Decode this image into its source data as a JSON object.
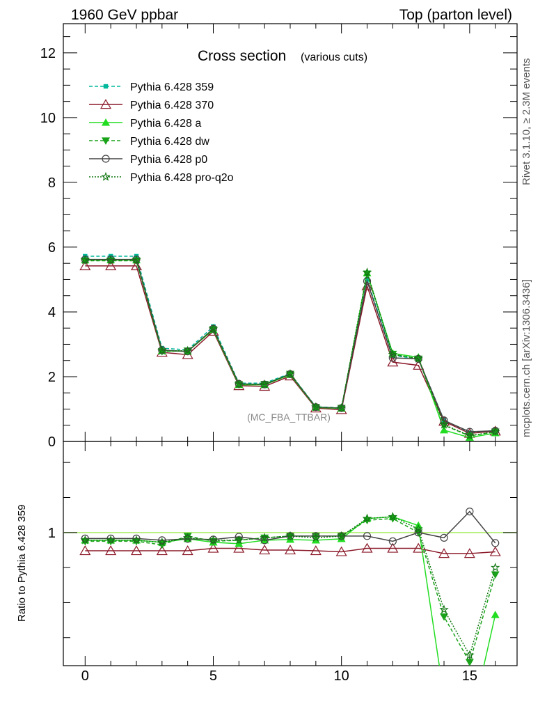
{
  "header": {
    "left": "1960 GeV ppbar",
    "right": "Top (parton level)"
  },
  "side_labels": {
    "rivet": "Rivet 3.1.10, ≥ 2.3M events",
    "mcplots": "mcplots.cern.ch [arXiv:1306.3436]"
  },
  "chart_data": [
    {
      "type": "line",
      "title": "Cross section",
      "subtitle": "(various cuts)",
      "watermark": "(MC_FBA_TTBAR)",
      "xlabel": "",
      "ylabel": "",
      "xlim": [
        -0.85,
        16.85
      ],
      "ylim": [
        0,
        12.9
      ],
      "x_ticks": [
        0,
        5,
        10,
        15
      ],
      "y_ticks": [
        0,
        2,
        4,
        6,
        8,
        10,
        12
      ],
      "legend_position": "top-left",
      "grid": false,
      "x": [
        0,
        1,
        2,
        3,
        4,
        5,
        6,
        7,
        8,
        9,
        10,
        11,
        12,
        13,
        14,
        15,
        16
      ],
      "series": [
        {
          "name": "Pythia 6.428 359",
          "color": "#00b89c",
          "dash": "5,3",
          "marker": "square",
          "values": [
            5.72,
            5.72,
            5.72,
            2.88,
            2.83,
            3.55,
            1.8,
            1.8,
            2.1,
            1.07,
            1.04,
            5.0,
            2.65,
            2.55,
            0.66,
            0.27,
            0.34
          ]
        },
        {
          "name": "Pythia 6.428 370",
          "color": "#8b1a2a",
          "dash": "",
          "marker": "triangle-open",
          "values": [
            5.42,
            5.42,
            5.42,
            2.75,
            2.68,
            3.4,
            1.72,
            1.7,
            2.02,
            1.03,
            0.98,
            4.8,
            2.45,
            2.35,
            0.62,
            0.25,
            0.32
          ]
        },
        {
          "name": "Pythia 6.428 a",
          "color": "#22dd22",
          "dash": "",
          "marker": "triangle",
          "values": [
            5.6,
            5.6,
            5.6,
            2.8,
            2.78,
            3.45,
            1.75,
            1.75,
            2.06,
            1.05,
            1.02,
            5.2,
            2.72,
            2.6,
            0.35,
            0.12,
            0.26
          ]
        },
        {
          "name": "Pythia 6.428 dw",
          "color": "#1aa31a",
          "dash": "5,3",
          "marker": "triangle-down",
          "values": [
            5.58,
            5.58,
            5.58,
            2.78,
            2.8,
            3.46,
            1.76,
            1.77,
            2.08,
            1.06,
            1.03,
            5.18,
            2.7,
            2.55,
            0.5,
            0.17,
            0.3
          ]
        },
        {
          "name": "Pythia 6.428 p0",
          "color": "#444444",
          "dash": "",
          "marker": "circle-open",
          "values": [
            5.62,
            5.62,
            5.62,
            2.82,
            2.78,
            3.48,
            1.78,
            1.76,
            2.08,
            1.06,
            1.03,
            4.95,
            2.58,
            2.55,
            0.65,
            0.3,
            0.33
          ]
        },
        {
          "name": "Pythia 6.428 pro-q2o",
          "color": "#117711",
          "dash": "2,2",
          "marker": "star",
          "values": [
            5.6,
            5.6,
            5.6,
            2.8,
            2.8,
            3.47,
            1.77,
            1.76,
            2.08,
            1.06,
            1.03,
            5.22,
            2.68,
            2.56,
            0.52,
            0.18,
            0.3
          ]
        }
      ]
    },
    {
      "type": "line",
      "title": "",
      "xlabel": "",
      "ylabel": "Ratio to Pythia 6.428 359",
      "xlim": [
        -0.85,
        16.85
      ],
      "ylim": [
        0.62,
        1.26
      ],
      "x_ticks": [
        0,
        5,
        10,
        15
      ],
      "y_ticks": [
        1
      ],
      "reference_line": 1,
      "grid": false,
      "x": [
        0,
        1,
        2,
        3,
        4,
        5,
        6,
        7,
        8,
        9,
        10,
        11,
        12,
        13,
        14,
        15,
        16
      ],
      "series": [
        {
          "name": "Pythia 6.428 370",
          "color": "#8b1a2a",
          "dash": "",
          "marker": "triangle-open",
          "values": [
            0.948,
            0.948,
            0.948,
            0.948,
            0.948,
            0.955,
            0.955,
            0.95,
            0.95,
            0.948,
            0.945,
            0.955,
            0.955,
            0.955,
            0.94,
            0.94,
            0.945
          ]
        },
        {
          "name": "Pythia 6.428 a",
          "color": "#22dd22",
          "dash": "",
          "marker": "triangle",
          "values": [
            0.978,
            0.978,
            0.978,
            0.972,
            0.982,
            0.972,
            0.968,
            0.978,
            0.98,
            0.978,
            0.982,
            1.04,
            1.045,
            1.02,
            0.53,
            0.44,
            0.765
          ]
        },
        {
          "name": "Pythia 6.428 dw",
          "color": "#1aa31a",
          "dash": "5,3",
          "marker": "triangle-down",
          "values": [
            0.975,
            0.975,
            0.975,
            0.965,
            0.99,
            0.975,
            0.978,
            0.985,
            0.99,
            0.99,
            0.99,
            1.035,
            1.04,
            1.0,
            0.76,
            0.63,
            0.88
          ]
        },
        {
          "name": "Pythia 6.428 p0",
          "color": "#444444",
          "dash": "",
          "marker": "circle-open",
          "values": [
            0.983,
            0.983,
            0.983,
            0.978,
            0.982,
            0.98,
            0.988,
            0.978,
            0.99,
            0.99,
            0.99,
            0.99,
            0.975,
            1.0,
            0.985,
            1.06,
            0.97
          ]
        },
        {
          "name": "Pythia 6.428 pro-q2o",
          "color": "#117711",
          "dash": "2,2",
          "marker": "star",
          "values": [
            0.978,
            0.978,
            0.978,
            0.972,
            0.985,
            0.978,
            0.978,
            0.985,
            0.99,
            0.985,
            0.99,
            1.04,
            1.045,
            1.01,
            0.78,
            0.65,
            0.9
          ]
        }
      ]
    }
  ]
}
